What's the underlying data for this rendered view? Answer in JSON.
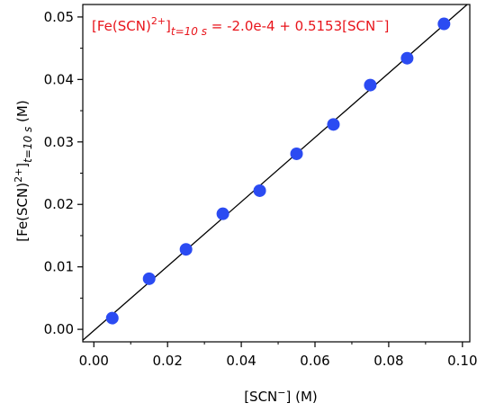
{
  "chart_data": {
    "type": "scatter",
    "annotation": {
      "lhs_main": "[Fe(SCN)",
      "lhs_sup": "2+",
      "lhs_close": "]",
      "lhs_sub": "t=10 s",
      "rhs": " = -2.0e-4 + 0.5153[SCN",
      "rhs_sup": "−",
      "rhs_close": "]",
      "color": "#e8141b"
    },
    "xlabel": {
      "main": "[SCN",
      "sup": "−",
      "tail": "] (M)"
    },
    "ylabel": {
      "main": "[Fe(SCN)",
      "sup": "2+",
      "close": "]",
      "sub": "t=10 s",
      "tail": " (M)"
    },
    "xlim": [
      -0.003,
      0.102
    ],
    "ylim": [
      -0.002,
      0.052
    ],
    "x_ticks": [
      0.0,
      0.02,
      0.04,
      0.06,
      0.08,
      0.1
    ],
    "x_tick_labels": [
      "0.00",
      "0.02",
      "0.04",
      "0.06",
      "0.08",
      "0.10"
    ],
    "y_ticks": [
      0.0,
      0.01,
      0.02,
      0.03,
      0.04,
      0.05
    ],
    "y_tick_labels": [
      "0.00",
      "0.01",
      "0.02",
      "0.03",
      "0.04",
      "0.05"
    ],
    "points": [
      {
        "x": 0.005,
        "y": 0.0018
      },
      {
        "x": 0.015,
        "y": 0.0081
      },
      {
        "x": 0.025,
        "y": 0.0128
      },
      {
        "x": 0.035,
        "y": 0.0185
      },
      {
        "x": 0.045,
        "y": 0.0222
      },
      {
        "x": 0.055,
        "y": 0.0281
      },
      {
        "x": 0.065,
        "y": 0.0328
      },
      {
        "x": 0.075,
        "y": 0.0391
      },
      {
        "x": 0.085,
        "y": 0.0434
      },
      {
        "x": 0.095,
        "y": 0.0489
      }
    ],
    "fit": {
      "intercept": -0.0002,
      "slope": 0.5153
    },
    "point_color": "#2b4bf2",
    "line_color": "#000000",
    "grid": false
  }
}
